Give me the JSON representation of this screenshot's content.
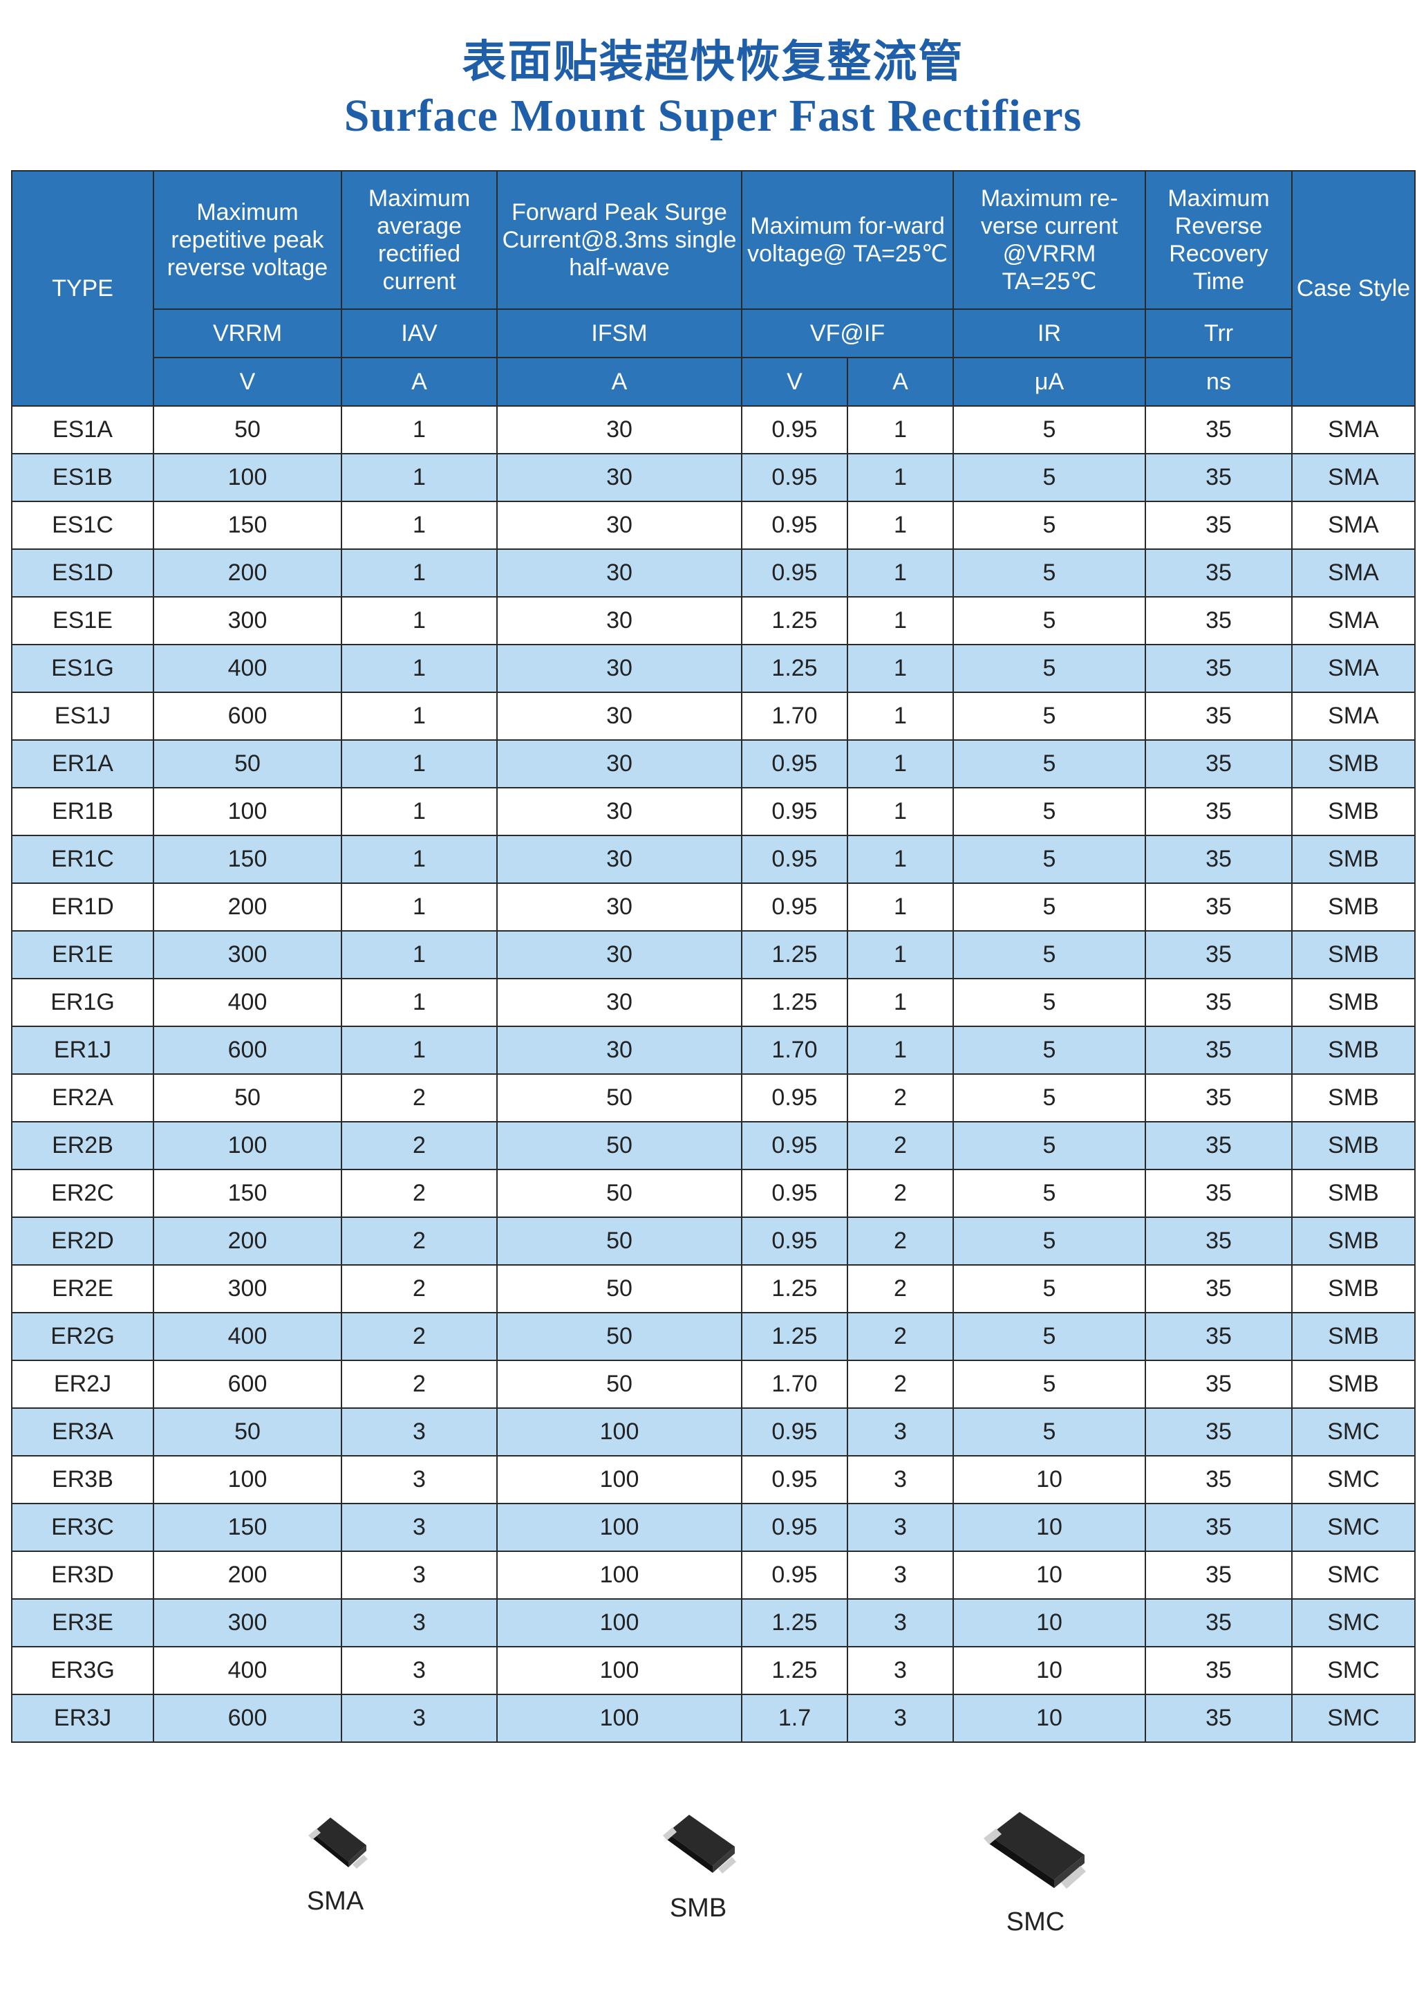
{
  "title_cn": "表面贴装超快恢复整流管",
  "title_en": "Surface Mount Super Fast Rectifiers",
  "header": {
    "type": "TYPE",
    "vrrm_desc": "Maximum repetitive peak reverse voltage",
    "iav_desc": "Maximum average rectified current",
    "ifsm_desc": "Forward Peak Surge Current@8.3ms single half-wave",
    "vf_desc": "Maximum for-ward voltage@ TA=25℃",
    "ir_desc": "Maximum re-verse current @VRRM TA=25℃",
    "trr_desc": "Maximum Reverse Recovery Time",
    "case": "Case Style",
    "sym_vrrm": "VRRM",
    "sym_iav": "IAV",
    "sym_ifsm": "IFSM",
    "sym_vf": "VF@IF",
    "sym_ir": "IR",
    "sym_trr": "Trr",
    "unit_vrrm": "V",
    "unit_iav": "A",
    "unit_ifsm": "A",
    "unit_vf": "V",
    "unit_if": "A",
    "unit_ir": "μA",
    "unit_trr": "ns"
  },
  "rows": [
    [
      "ES1A",
      "50",
      "1",
      "30",
      "0.95",
      "1",
      "5",
      "35",
      "SMA"
    ],
    [
      "ES1B",
      "100",
      "1",
      "30",
      "0.95",
      "1",
      "5",
      "35",
      "SMA"
    ],
    [
      "ES1C",
      "150",
      "1",
      "30",
      "0.95",
      "1",
      "5",
      "35",
      "SMA"
    ],
    [
      "ES1D",
      "200",
      "1",
      "30",
      "0.95",
      "1",
      "5",
      "35",
      "SMA"
    ],
    [
      "ES1E",
      "300",
      "1",
      "30",
      "1.25",
      "1",
      "5",
      "35",
      "SMA"
    ],
    [
      "ES1G",
      "400",
      "1",
      "30",
      "1.25",
      "1",
      "5",
      "35",
      "SMA"
    ],
    [
      "ES1J",
      "600",
      "1",
      "30",
      "1.70",
      "1",
      "5",
      "35",
      "SMA"
    ],
    [
      "ER1A",
      "50",
      "1",
      "30",
      "0.95",
      "1",
      "5",
      "35",
      "SMB"
    ],
    [
      "ER1B",
      "100",
      "1",
      "30",
      "0.95",
      "1",
      "5",
      "35",
      "SMB"
    ],
    [
      "ER1C",
      "150",
      "1",
      "30",
      "0.95",
      "1",
      "5",
      "35",
      "SMB"
    ],
    [
      "ER1D",
      "200",
      "1",
      "30",
      "0.95",
      "1",
      "5",
      "35",
      "SMB"
    ],
    [
      "ER1E",
      "300",
      "1",
      "30",
      "1.25",
      "1",
      "5",
      "35",
      "SMB"
    ],
    [
      "ER1G",
      "400",
      "1",
      "30",
      "1.25",
      "1",
      "5",
      "35",
      "SMB"
    ],
    [
      "ER1J",
      "600",
      "1",
      "30",
      "1.70",
      "1",
      "5",
      "35",
      "SMB"
    ],
    [
      "ER2A",
      "50",
      "2",
      "50",
      "0.95",
      "2",
      "5",
      "35",
      "SMB"
    ],
    [
      "ER2B",
      "100",
      "2",
      "50",
      "0.95",
      "2",
      "5",
      "35",
      "SMB"
    ],
    [
      "ER2C",
      "150",
      "2",
      "50",
      "0.95",
      "2",
      "5",
      "35",
      "SMB"
    ],
    [
      "ER2D",
      "200",
      "2",
      "50",
      "0.95",
      "2",
      "5",
      "35",
      "SMB"
    ],
    [
      "ER2E",
      "300",
      "2",
      "50",
      "1.25",
      "2",
      "5",
      "35",
      "SMB"
    ],
    [
      "ER2G",
      "400",
      "2",
      "50",
      "1.25",
      "2",
      "5",
      "35",
      "SMB"
    ],
    [
      "ER2J",
      "600",
      "2",
      "50",
      "1.70",
      "2",
      "5",
      "35",
      "SMB"
    ],
    [
      "ER3A",
      "50",
      "3",
      "100",
      "0.95",
      "3",
      "5",
      "35",
      "SMC"
    ],
    [
      "ER3B",
      "100",
      "3",
      "100",
      "0.95",
      "3",
      "10",
      "35",
      "SMC"
    ],
    [
      "ER3C",
      "150",
      "3",
      "100",
      "0.95",
      "3",
      "10",
      "35",
      "SMC"
    ],
    [
      "ER3D",
      "200",
      "3",
      "100",
      "0.95",
      "3",
      "10",
      "35",
      "SMC"
    ],
    [
      "ER3E",
      "300",
      "3",
      "100",
      "1.25",
      "3",
      "10",
      "35",
      "SMC"
    ],
    [
      "ER3G",
      "400",
      "3",
      "100",
      "1.25",
      "3",
      "10",
      "35",
      "SMC"
    ],
    [
      "ER3J",
      "600",
      "3",
      "100",
      "1.7",
      "3",
      "10",
      "35",
      "SMC"
    ]
  ],
  "packages": [
    "SMA",
    "SMB",
    "SMC"
  ]
}
